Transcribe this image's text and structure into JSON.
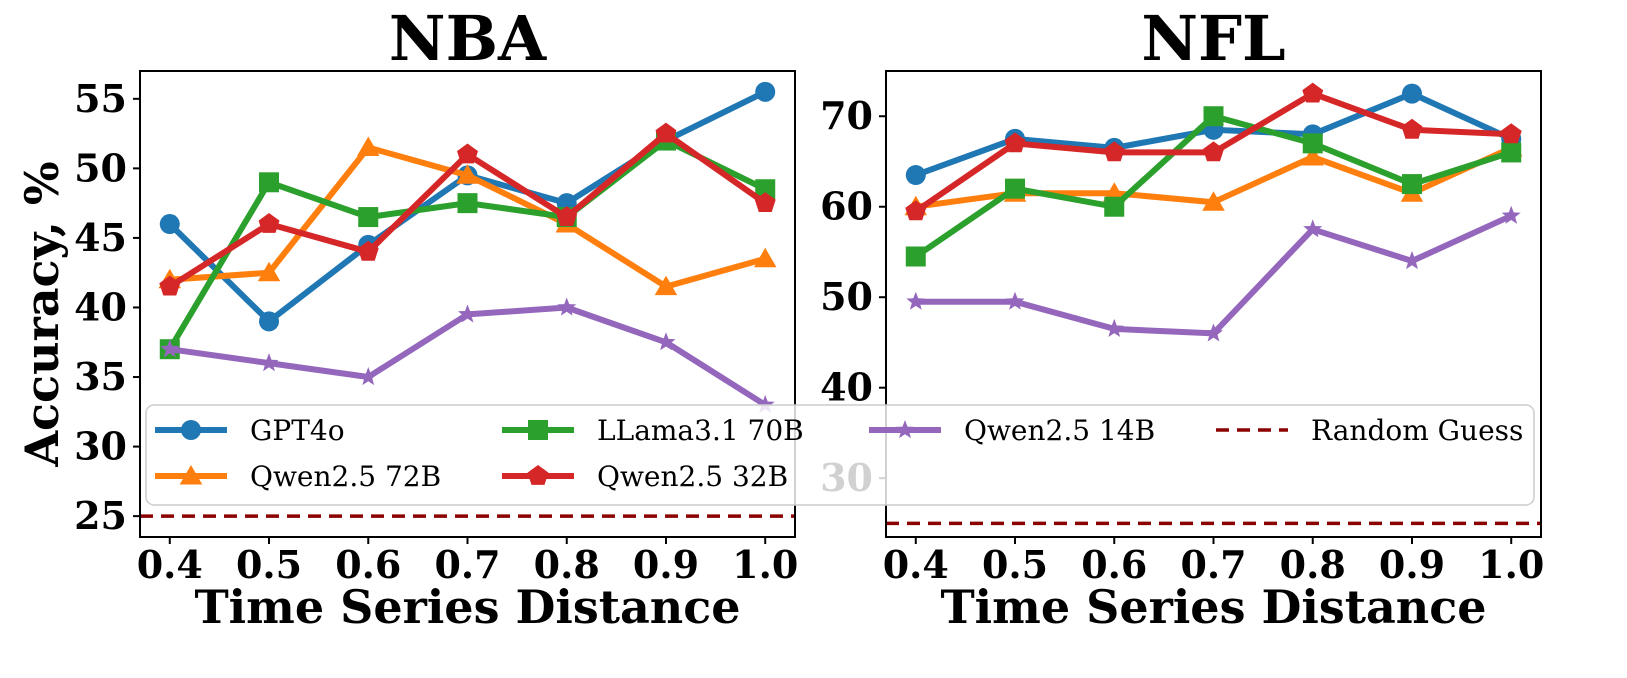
{
  "chart_data": [
    {
      "type": "line",
      "title": "NBA",
      "xlabel": "Time Series Distance",
      "ylabel": "Accuracy, %",
      "x": [
        0.4,
        0.5,
        0.6,
        0.7,
        0.8,
        0.9,
        1.0
      ],
      "x_tick_labels": [
        "0.4",
        "0.5",
        "0.6",
        "0.7",
        "0.8",
        "0.9",
        "1.0"
      ],
      "xlim": [
        0.37,
        1.03
      ],
      "ylim": [
        23.5,
        57.0
      ],
      "y_ticks": [
        25,
        30,
        35,
        40,
        45,
        50,
        55
      ],
      "y_tick_labels": [
        "25",
        "30",
        "35",
        "40",
        "45",
        "50",
        "55"
      ],
      "series": [
        {
          "name": "GPT4o",
          "color": "#1f77b4",
          "marker": "circle",
          "values": [
            46.0,
            39.0,
            44.5,
            49.5,
            47.5,
            52.0,
            55.5
          ]
        },
        {
          "name": "Qwen2.5 72B",
          "color": "#ff7f0e",
          "marker": "triangle",
          "values": [
            42.0,
            42.5,
            51.5,
            49.5,
            46.0,
            41.5,
            43.5
          ]
        },
        {
          "name": "LLama3.1 70B",
          "color": "#2ca02c",
          "marker": "square",
          "values": [
            37.0,
            49.0,
            46.5,
            47.5,
            46.5,
            52.0,
            48.5
          ]
        },
        {
          "name": "Qwen2.5 32B",
          "color": "#d62728",
          "marker": "pentagon",
          "values": [
            41.5,
            46.0,
            44.0,
            51.0,
            46.5,
            52.5,
            47.5
          ]
        },
        {
          "name": "Qwen2.5 14B",
          "color": "#9467bd",
          "marker": "star",
          "values": [
            37.0,
            36.0,
            35.0,
            39.5,
            40.0,
            37.5,
            33.0
          ]
        }
      ],
      "reference_line": {
        "name": "Random Guess",
        "value": 25,
        "color": "#8b0000",
        "style": "dashed"
      }
    },
    {
      "type": "line",
      "title": "NFL",
      "xlabel": "Time Series Distance",
      "ylabel": "",
      "x": [
        0.4,
        0.5,
        0.6,
        0.7,
        0.8,
        0.9,
        1.0
      ],
      "x_tick_labels": [
        "0.4",
        "0.5",
        "0.6",
        "0.7",
        "0.8",
        "0.9",
        "1.0"
      ],
      "xlim": [
        0.37,
        1.03
      ],
      "ylim": [
        23.5,
        75.0
      ],
      "y_ticks": [
        30,
        40,
        50,
        60,
        70
      ],
      "y_tick_labels": [
        "30",
        "40",
        "50",
        "60",
        "70"
      ],
      "series": [
        {
          "name": "GPT4o",
          "color": "#1f77b4",
          "marker": "circle",
          "values": [
            63.5,
            67.5,
            66.5,
            68.5,
            68.0,
            72.5,
            67.5
          ]
        },
        {
          "name": "Qwen2.5 72B",
          "color": "#ff7f0e",
          "marker": "triangle",
          "values": [
            60.0,
            61.5,
            61.5,
            60.5,
            65.5,
            61.5,
            66.5
          ]
        },
        {
          "name": "LLama3.1 70B",
          "color": "#2ca02c",
          "marker": "square",
          "values": [
            54.5,
            62.0,
            60.0,
            70.0,
            67.0,
            62.5,
            66.0
          ]
        },
        {
          "name": "Qwen2.5 32B",
          "color": "#d62728",
          "marker": "pentagon",
          "values": [
            59.5,
            67.0,
            66.0,
            66.0,
            72.5,
            68.5,
            68.0
          ]
        },
        {
          "name": "Qwen2.5 14B",
          "color": "#9467bd",
          "marker": "star",
          "values": [
            49.5,
            49.5,
            46.5,
            46.0,
            57.5,
            54.0,
            59.0
          ]
        }
      ],
      "reference_line": {
        "name": "Random Guess",
        "value": 25,
        "color": "#8b0000",
        "style": "dashed"
      }
    }
  ],
  "legend": {
    "placement": "lower-center",
    "entries": [
      {
        "label": "GPT4o",
        "color": "#1f77b4",
        "marker": "circle",
        "style": "solid"
      },
      {
        "label": "LLama3.1 70B",
        "color": "#2ca02c",
        "marker": "square",
        "style": "solid"
      },
      {
        "label": "Qwen2.5 14B",
        "color": "#9467bd",
        "marker": "star",
        "style": "solid"
      },
      {
        "label": "Random Guess",
        "color": "#8b0000",
        "marker": "none",
        "style": "dashed"
      },
      {
        "label": "Qwen2.5 72B",
        "color": "#ff7f0e",
        "marker": "triangle",
        "style": "solid"
      },
      {
        "label": "Qwen2.5 32B",
        "color": "#d62728",
        "marker": "pentagon",
        "style": "solid"
      }
    ]
  }
}
